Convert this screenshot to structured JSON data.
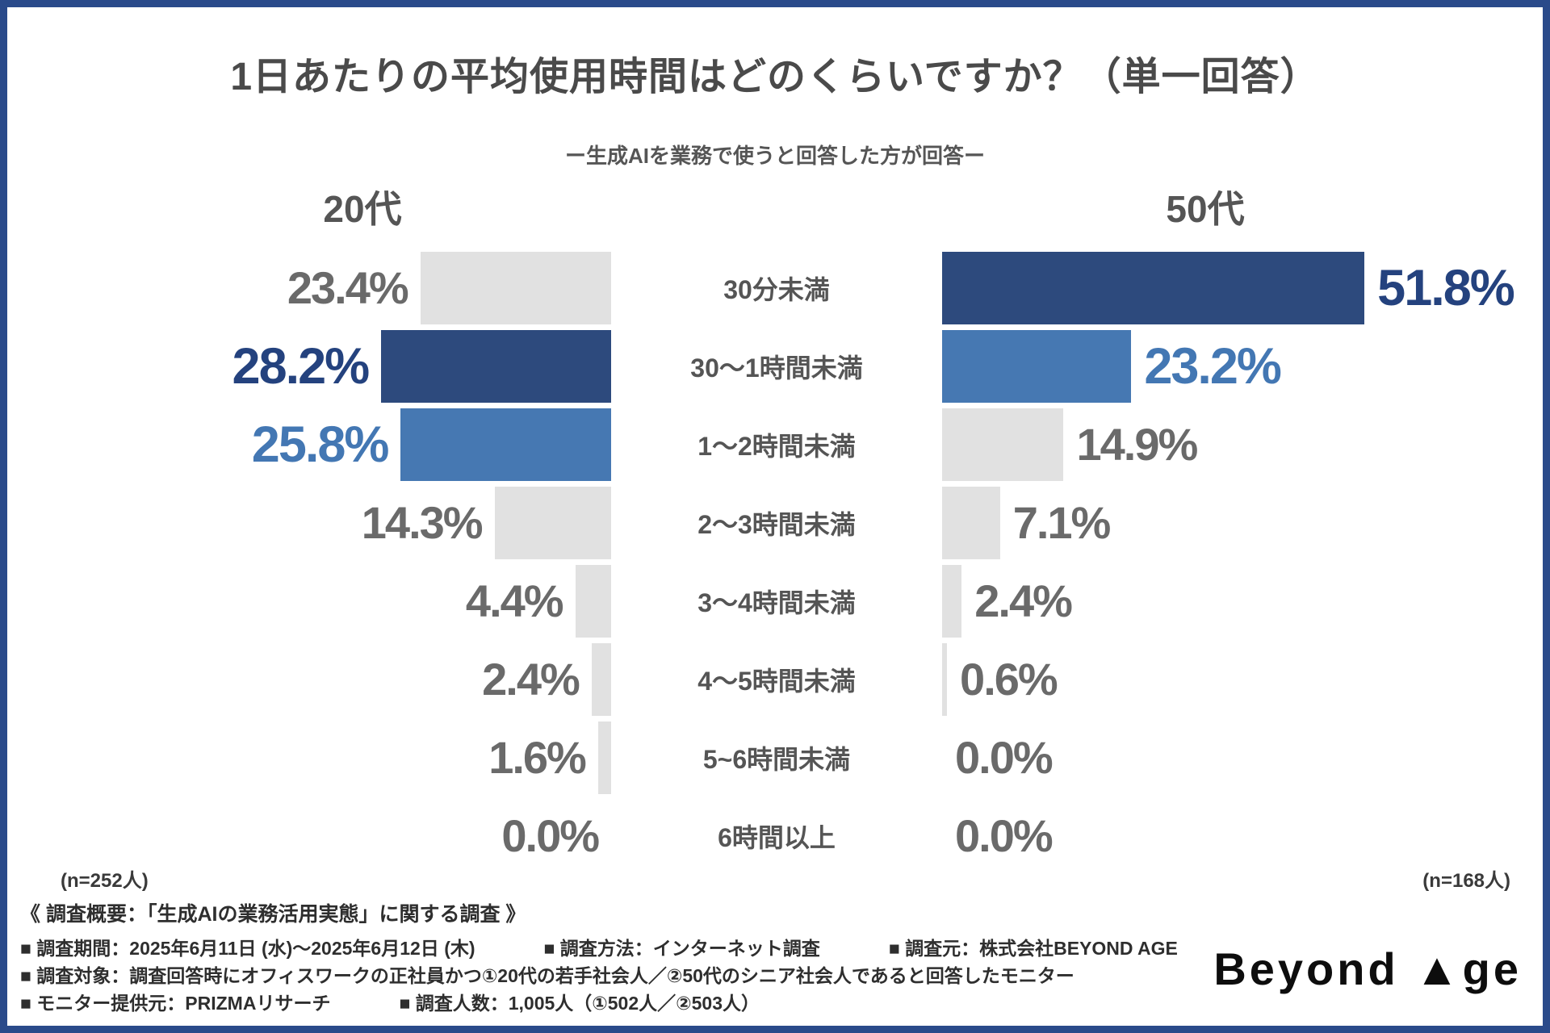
{
  "title": "1日あたりの平均使用時間はどのくらいですか？（単一回答）",
  "subtitle": "ー生成AIを業務で使うと回答した方が回答ー",
  "palette": {
    "navy_bar": "#2d4a7d",
    "blue_bar": "#4678b2",
    "gray_bar": "#e1e1e1",
    "frame_border": "#2a4a8a",
    "value_gray_text": "#6a6a6a",
    "value_navy_text": "#24427e",
    "value_blue_text": "#4377b3"
  },
  "chart_data": {
    "type": "bar",
    "orientation": "horizontal-mirrored",
    "value_suffix": "%",
    "categories": [
      "30分未満",
      "30〜1時間未満",
      "1〜2時間未満",
      "2〜3時間未満",
      "3〜4時間未満",
      "4〜5時間未満",
      "5~6時間未満",
      "6時間以上"
    ],
    "series": [
      {
        "name": "20代",
        "n_label": "(n=252人)",
        "values": [
          23.4,
          28.2,
          25.8,
          14.3,
          4.4,
          2.4,
          1.6,
          0.0
        ],
        "bar_colors": [
          "gray",
          "navy",
          "blue",
          "gray",
          "gray",
          "gray",
          "gray",
          "gray"
        ]
      },
      {
        "name": "50代",
        "n_label": "(n=168人)",
        "values": [
          51.8,
          23.2,
          14.9,
          7.1,
          2.4,
          0.6,
          0.0,
          0.0
        ],
        "bar_colors": [
          "navy",
          "blue",
          "gray",
          "gray",
          "gray",
          "gray",
          "gray",
          "gray"
        ]
      }
    ],
    "xlim": [
      0,
      55
    ],
    "grid": false,
    "legend_position": "column-titles-top"
  },
  "footer": {
    "overview": "《 調査概要：「生成AIの業務活用実態」に関する調査 》",
    "lines": [
      [
        "■ 調査期間：2025年6月11日 (水)〜2025年6月12日 (木)",
        "■ 調査方法：インターネット調査",
        "■ 調査元：株式会社BEYOND AGE"
      ],
      [
        "■ 調査対象：調査回答時にオフィスワークの正社員かつ①20代の若手社会人／②50代のシニア社会人であると回答したモニター"
      ],
      [
        "■ モニター提供元：PRIZMAリサーチ",
        "■ 調査人数：1,005人（①502人／②503人）"
      ]
    ],
    "logo_text": "Beyond ▲ge"
  }
}
